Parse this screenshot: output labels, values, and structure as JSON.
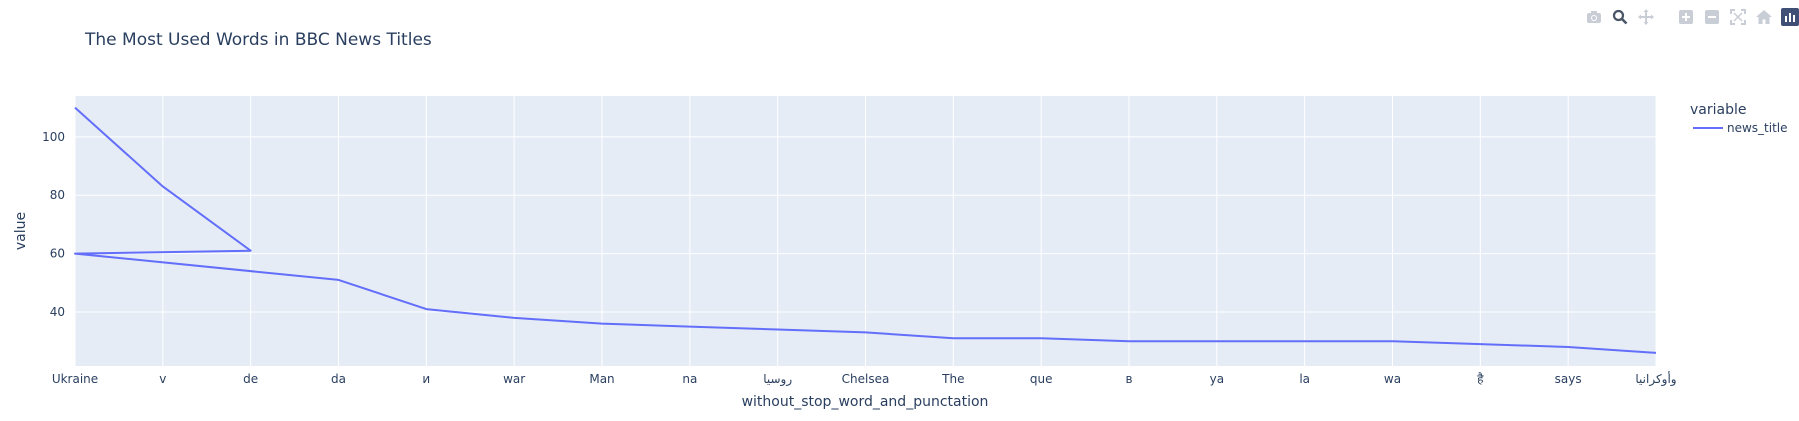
{
  "chart_data": {
    "type": "line",
    "title": "The Most Used Words in BBC News Titles",
    "xlabel": "without_stop_word_and_punctation",
    "ylabel": "value",
    "legend_title": "variable",
    "legend_placement": "right",
    "grid": true,
    "categories": [
      "Ukraine",
      "v",
      "de",
      "da",
      "и",
      "war",
      "Man",
      "na",
      "روسيا",
      "Chelsea",
      "The",
      "que",
      "в",
      "ya",
      "la",
      "wa",
      "है",
      "says",
      "وأوكرانيا"
    ],
    "y_ticks": [
      40,
      60,
      80,
      100
    ],
    "ylim": [
      21.5,
      114
    ],
    "series": [
      {
        "name": "news_title",
        "color": "#636efa",
        "points": [
          [
            "Ukraine",
            110
          ],
          [
            "v",
            83
          ],
          [
            "de",
            61
          ],
          [
            "Ukraine",
            60
          ],
          [
            "da",
            51
          ],
          [
            "и",
            41
          ],
          [
            "war",
            38
          ],
          [
            "Man",
            36
          ],
          [
            "na",
            35
          ],
          [
            "روسيا",
            34
          ],
          [
            "Chelsea",
            33
          ],
          [
            "The",
            31
          ],
          [
            "que",
            31
          ],
          [
            "в",
            30
          ],
          [
            "ya",
            30
          ],
          [
            "la",
            30
          ],
          [
            "wa",
            30
          ],
          [
            "है",
            29
          ],
          [
            "says",
            28
          ],
          [
            "وأوكرانيا",
            26
          ]
        ]
      }
    ]
  },
  "modebar": {
    "icons": [
      "camera-icon",
      "zoom-icon",
      "pan-icon",
      "zoom-in-icon",
      "zoom-out-icon",
      "autoscale-icon",
      "home-icon",
      "plotly-logo-icon"
    ]
  }
}
